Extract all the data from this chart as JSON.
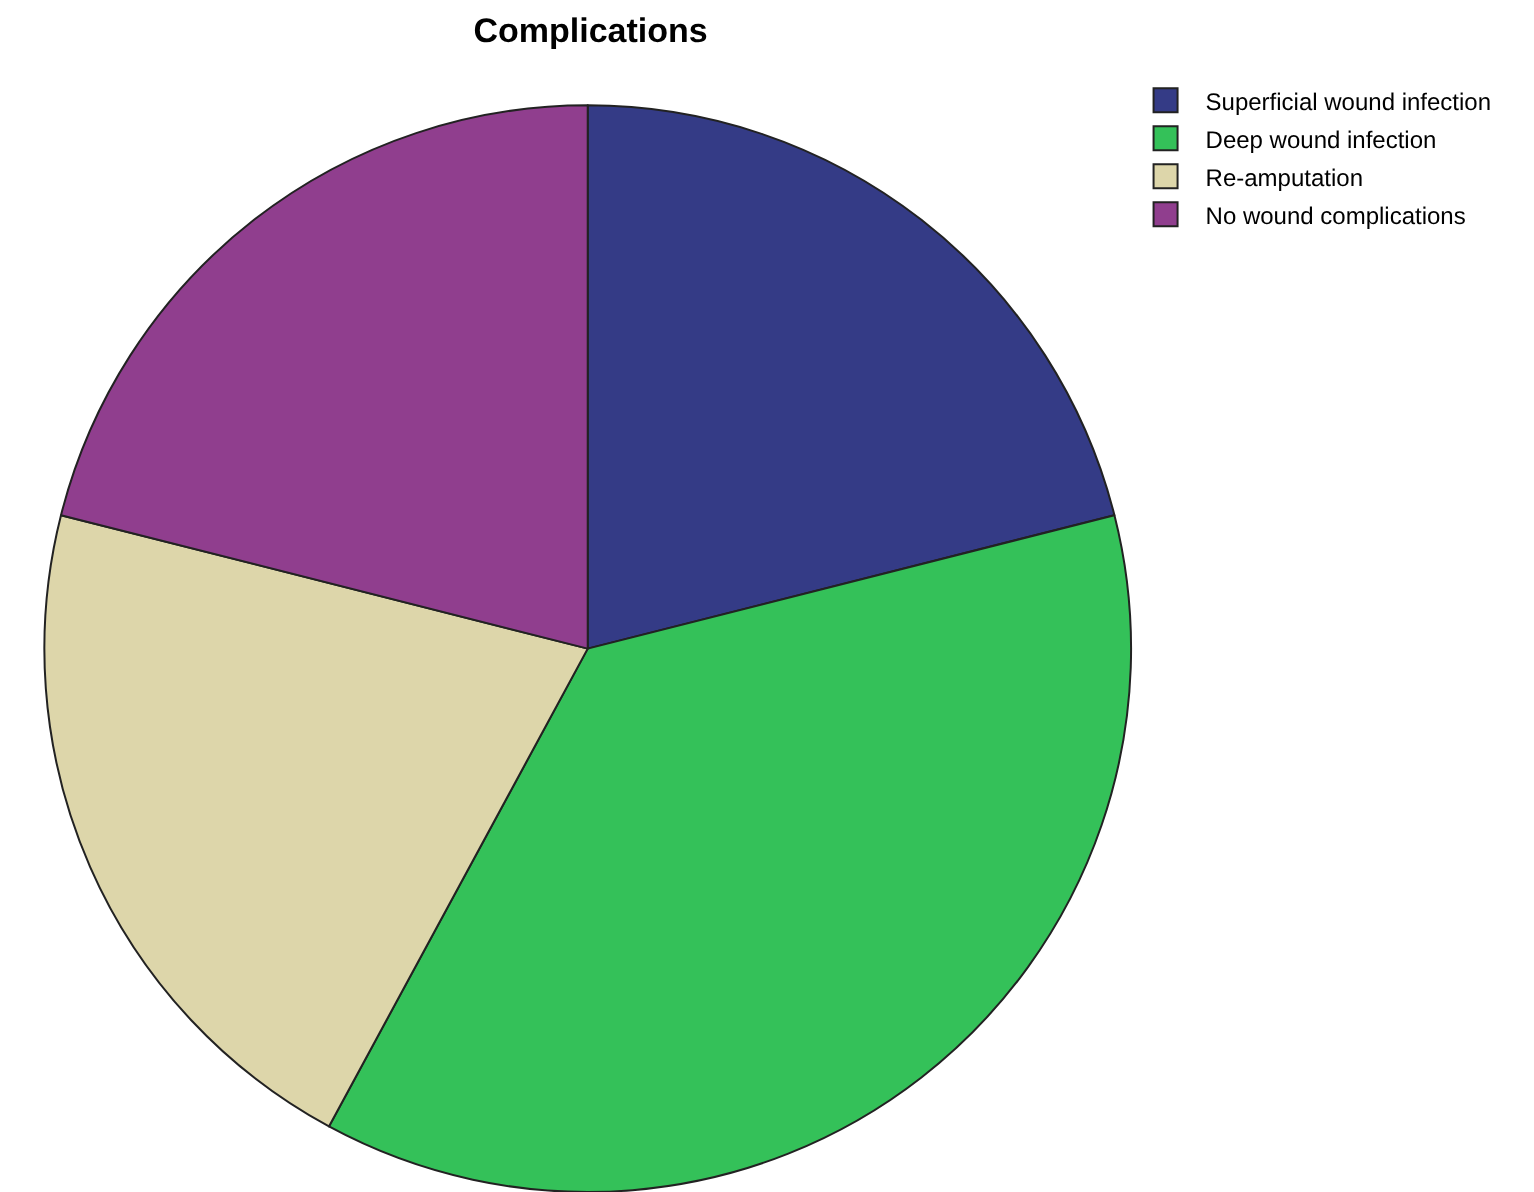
{
  "chart_data": {
    "type": "pie",
    "title": "Complications",
    "categories": [
      "Superficial wound infection",
      "Deep wound infection",
      "Re-amputation",
      "No wound complications"
    ],
    "values": [
      21.05,
      36.85,
      21.05,
      21.05
    ],
    "colors": [
      "#343b86",
      "#34c159",
      "#ddd6aa",
      "#903e8e"
    ],
    "legend": "top right"
  }
}
